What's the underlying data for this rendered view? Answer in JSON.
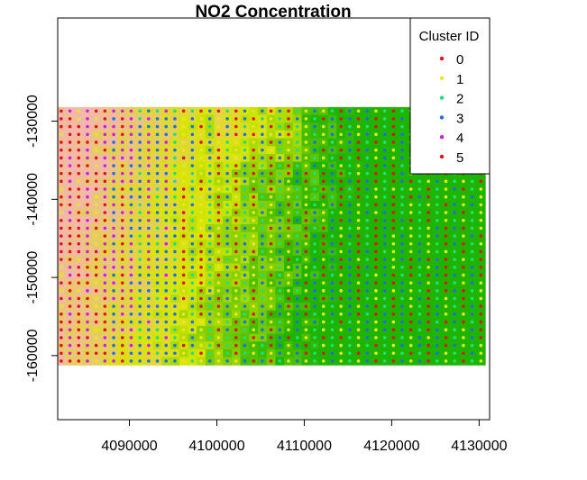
{
  "chart_data": {
    "type": "scatter",
    "title": "NO2 Concentration",
    "xlabel": "",
    "ylabel": "",
    "xlim": [
      4081800,
      4131200
    ],
    "ylim": [
      -168200,
      -116800
    ],
    "xticks": [
      4090000,
      4100000,
      4110000,
      4120000,
      4130000
    ],
    "yticks": [
      -130000,
      -140000,
      -150000,
      -160000
    ],
    "xtick_labels": [
      "4090000",
      "4100000",
      "4110000",
      "4120000",
      "4130000"
    ],
    "ytick_labels": [
      "-130000",
      "-140000",
      "-150000",
      "-160000"
    ],
    "grid": false,
    "grid_extent": {
      "x_start": 4082200,
      "x_step": 1000,
      "x_count": 49,
      "y_start": -128700,
      "y_step": -1000,
      "y_count": 33
    },
    "heatmap": {
      "description_scale": "terrain colors, high values pink/orange, low values green",
      "low_color": "#1fb400",
      "mid_color": "#d8e600",
      "high_color": "#f2b8a8"
    },
    "legend": {
      "title": "Cluster ID",
      "position": "top-right",
      "entries": [
        {
          "label": "0",
          "color": "#df1616"
        },
        {
          "label": "1",
          "color": "#e6e628"
        },
        {
          "label": "2",
          "color": "#1fe07a"
        },
        {
          "label": "3",
          "color": "#1f6fe0"
        },
        {
          "label": "4",
          "color": "#cc1fe0"
        },
        {
          "label": "5",
          "color": "#df1616"
        }
      ]
    },
    "point_colors": {
      "0": "#df1616",
      "1": "#e6e628",
      "2": "#1fe07a",
      "3": "#1f6fe0",
      "4": "#cc1fe0",
      "5": "#df1616"
    }
  }
}
